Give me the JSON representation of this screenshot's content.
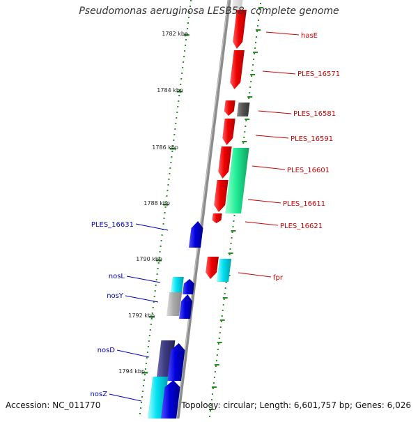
{
  "title": "Pseudomonas aeruginosa LESB58, complete genome",
  "accession_text": "Accession: NC_011770",
  "footer_text": "Topology: circular; Length: 6,601,757 bp; Genes: 6,026",
  "colors": {
    "backbone": "#8c8c8c",
    "tick": "#2a8a2a",
    "scale_label": "#222222",
    "forward_label": "#cc0000",
    "reverse_label": "#0000bb",
    "red": "#ee0000",
    "blue": "#0000dd",
    "cyan": "#00e0f0",
    "green": "#22ee99",
    "dark_grey": "#555555",
    "light_grey": "#aaaaaa",
    "slate": "#3c3a80"
  },
  "scale_labels": [
    "1782 kbp",
    "1784 kbp",
    "1786 kbp",
    "1788 kbp",
    "1790 kbp",
    "1792 kbp",
    "1794 kbp"
  ],
  "forward_labels": [
    "hasE",
    "PLES_16571",
    "PLES_16581",
    "PLES_16591",
    "PLES_16601",
    "PLES_16611",
    "PLES_16621",
    "fpr"
  ],
  "reverse_labels": [
    "PLES_16631",
    "nosL",
    "nosY",
    "nosD",
    "nosZ"
  ]
}
